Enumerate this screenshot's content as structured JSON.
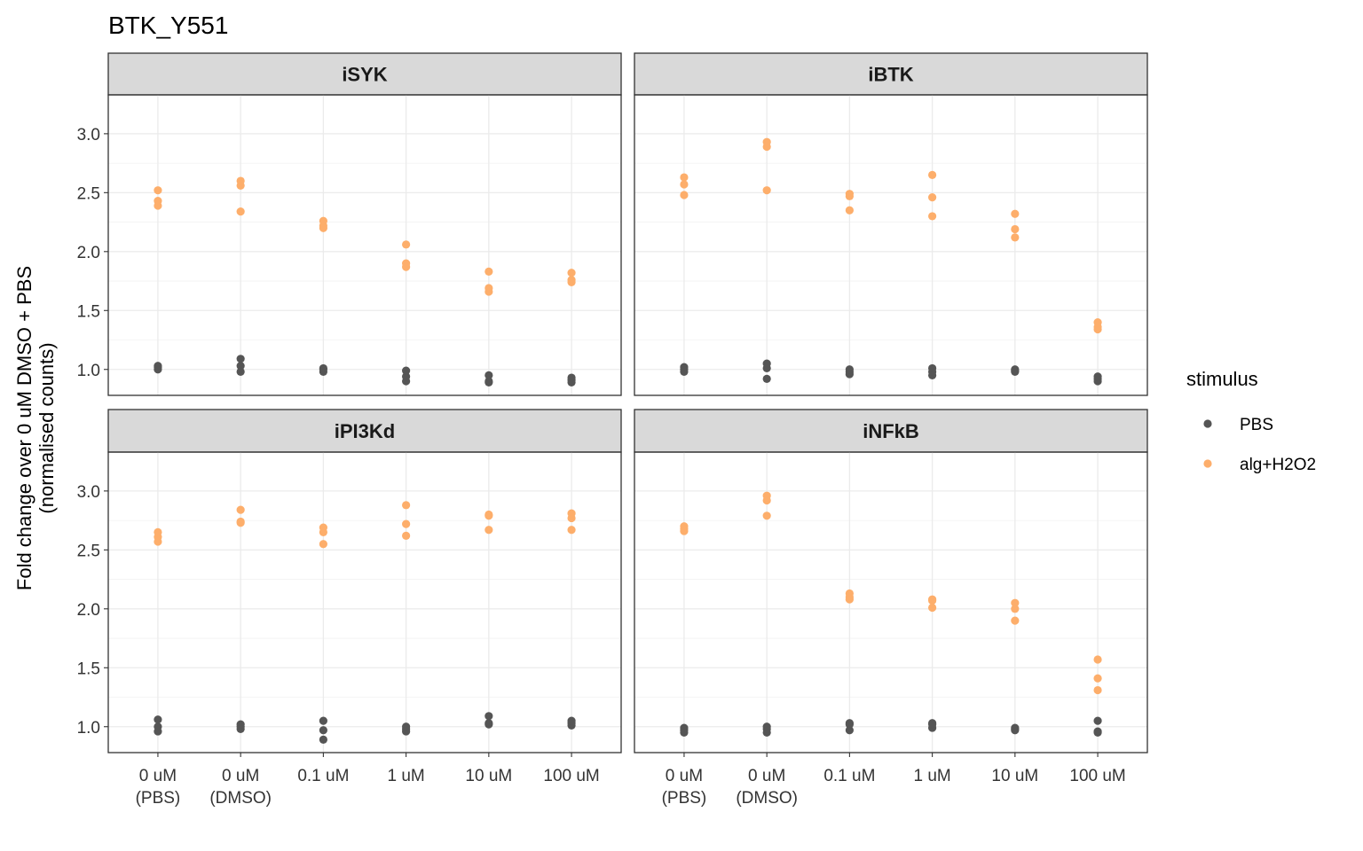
{
  "chart_data": {
    "type": "scatter",
    "title": "BTK_Y551",
    "ylabel_line1": "Fold change over 0 uM DMSO + PBS",
    "ylabel_line2": "(normalised counts)",
    "xlabel": "",
    "categories": [
      [
        "0 uM",
        "(PBS)"
      ],
      [
        "0 uM",
        "(DMSO)"
      ],
      [
        "0.1 uM"
      ],
      [
        "1 uM"
      ],
      [
        "10 uM"
      ],
      [
        "100 uM"
      ]
    ],
    "ylim": [
      0.78,
      3.33
    ],
    "yticks": [
      1.0,
      1.5,
      2.0,
      2.5,
      3.0
    ],
    "ytick_labels": [
      "1.0",
      "1.5",
      "2.0",
      "2.5",
      "3.0"
    ],
    "grid": true,
    "legend": {
      "title": "stimulus",
      "placement": "right",
      "entries": [
        {
          "label": "PBS",
          "color": "#555555"
        },
        {
          "label": "alg+H2O2",
          "color": "#fdae6b"
        }
      ]
    },
    "panels": [
      {
        "name": "iSYK",
        "series": [
          {
            "name": "PBS",
            "values": [
              [
                1.0,
                1.02,
                1.03
              ],
              [
                0.98,
                1.03,
                1.09
              ],
              [
                0.98,
                1.0,
                1.01
              ],
              [
                0.9,
                0.94,
                0.99
              ],
              [
                0.89,
                0.9,
                0.95
              ],
              [
                0.89,
                0.91,
                0.93
              ]
            ]
          },
          {
            "name": "alg+H2O2",
            "values": [
              [
                2.39,
                2.43,
                2.52
              ],
              [
                2.34,
                2.56,
                2.6
              ],
              [
                2.2,
                2.22,
                2.26
              ],
              [
                1.87,
                1.9,
                2.06
              ],
              [
                1.66,
                1.69,
                1.83
              ],
              [
                1.74,
                1.76,
                1.82
              ]
            ]
          }
        ]
      },
      {
        "name": "iBTK",
        "series": [
          {
            "name": "PBS",
            "values": [
              [
                0.98,
                1.0,
                1.02
              ],
              [
                0.92,
                1.01,
                1.05
              ],
              [
                0.96,
                0.98,
                1.0
              ],
              [
                0.95,
                0.98,
                1.01
              ],
              [
                0.98,
                0.99,
                1.0
              ],
              [
                0.9,
                0.92,
                0.94
              ]
            ]
          },
          {
            "name": "alg+H2O2",
            "values": [
              [
                2.48,
                2.57,
                2.63
              ],
              [
                2.52,
                2.89,
                2.93
              ],
              [
                2.35,
                2.47,
                2.49
              ],
              [
                2.3,
                2.46,
                2.65
              ],
              [
                2.12,
                2.19,
                2.32
              ],
              [
                1.34,
                1.36,
                1.4
              ]
            ]
          }
        ]
      },
      {
        "name": "iPI3Kd",
        "series": [
          {
            "name": "PBS",
            "values": [
              [
                0.96,
                1.0,
                1.06
              ],
              [
                0.98,
                1.0,
                1.02
              ],
              [
                0.89,
                0.97,
                1.05
              ],
              [
                0.96,
                0.98,
                1.0
              ],
              [
                1.02,
                1.03,
                1.09
              ],
              [
                1.01,
                1.03,
                1.05
              ]
            ]
          },
          {
            "name": "alg+H2O2",
            "values": [
              [
                2.57,
                2.61,
                2.65
              ],
              [
                2.73,
                2.74,
                2.84
              ],
              [
                2.55,
                2.65,
                2.69
              ],
              [
                2.62,
                2.72,
                2.88
              ],
              [
                2.67,
                2.79,
                2.8
              ],
              [
                2.67,
                2.77,
                2.81
              ]
            ]
          }
        ]
      },
      {
        "name": "iNFkB",
        "series": [
          {
            "name": "PBS",
            "values": [
              [
                0.95,
                0.97,
                0.99
              ],
              [
                0.95,
                0.98,
                1.0
              ],
              [
                0.97,
                1.02,
                1.03
              ],
              [
                0.99,
                1.02,
                1.03
              ],
              [
                0.97,
                0.98,
                0.99
              ],
              [
                0.95,
                0.96,
                1.05
              ]
            ]
          },
          {
            "name": "alg+H2O2",
            "values": [
              [
                2.66,
                2.68,
                2.7
              ],
              [
                2.79,
                2.92,
                2.96
              ],
              [
                2.08,
                2.1,
                2.13
              ],
              [
                2.01,
                2.07,
                2.08
              ],
              [
                1.9,
                2.0,
                2.05
              ],
              [
                1.31,
                1.41,
                1.57
              ]
            ]
          }
        ]
      }
    ]
  }
}
